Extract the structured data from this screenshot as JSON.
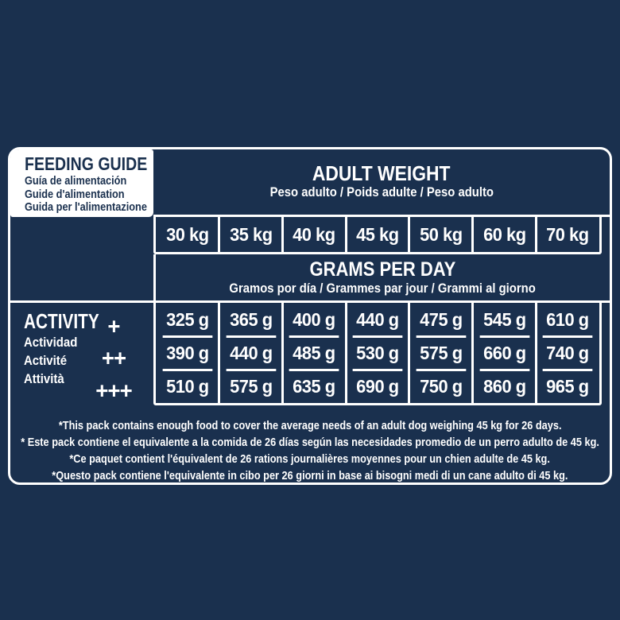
{
  "colors": {
    "navy_background": "#1a304e",
    "border_white": "#ffffff",
    "text_light": "#ffffff",
    "text_dark": "#1a304e"
  },
  "feeding_guide": {
    "title": "FEEDING GUIDE",
    "subtitles": [
      "Guía de alimentación",
      "Guide d'alimentation",
      "Guida per l'alimentazione"
    ]
  },
  "adult_weight": {
    "title": "ADULT WEIGHT",
    "subtitle": "Peso adulto / Poids adulte / Peso adulto"
  },
  "weights": [
    "30 kg",
    "35 kg",
    "40 kg",
    "45 kg",
    "50 kg",
    "60 kg",
    "70 kg"
  ],
  "grams_per_day": {
    "title": "GRAMS PER DAY",
    "subtitle": "Gramos por día / Grammes par jour / Grammi al giorno"
  },
  "activity": {
    "title": "ACTIVITY",
    "subtitles": [
      "Actividad",
      "Activité",
      "Attività"
    ],
    "levels": [
      "+",
      "++",
      "+++"
    ]
  },
  "rations": [
    {
      "activity_level": "+",
      "grams": [
        "325 g",
        "365 g",
        "400 g",
        "440 g",
        "475 g",
        "545 g",
        "610 g"
      ]
    },
    {
      "activity_level": "++",
      "grams": [
        "390 g",
        "440 g",
        "485 g",
        "530 g",
        "575 g",
        "660 g",
        "740 g"
      ]
    },
    {
      "activity_level": "+++",
      "grams": [
        "510 g",
        "575 g",
        "635 g",
        "690 g",
        "750 g",
        "860 g",
        "965 g"
      ]
    }
  ],
  "footnotes": [
    "*This pack contains enough food to cover the average needs of an adult dog weighing 45 kg for 26 days.",
    "* Este pack contiene el equivalente a la comida de 26 días según las necesidades promedio de un perro adulto de 45 kg.",
    "*Ce paquet contient l'équivalent de 26 rations journalières moyennes pour un chien adulte de 45 kg.",
    "*Questo pack contiene l'equivalente in cibo per 26 giorni in base ai bisogni medi di un cane adulto di 45 kg."
  ]
}
